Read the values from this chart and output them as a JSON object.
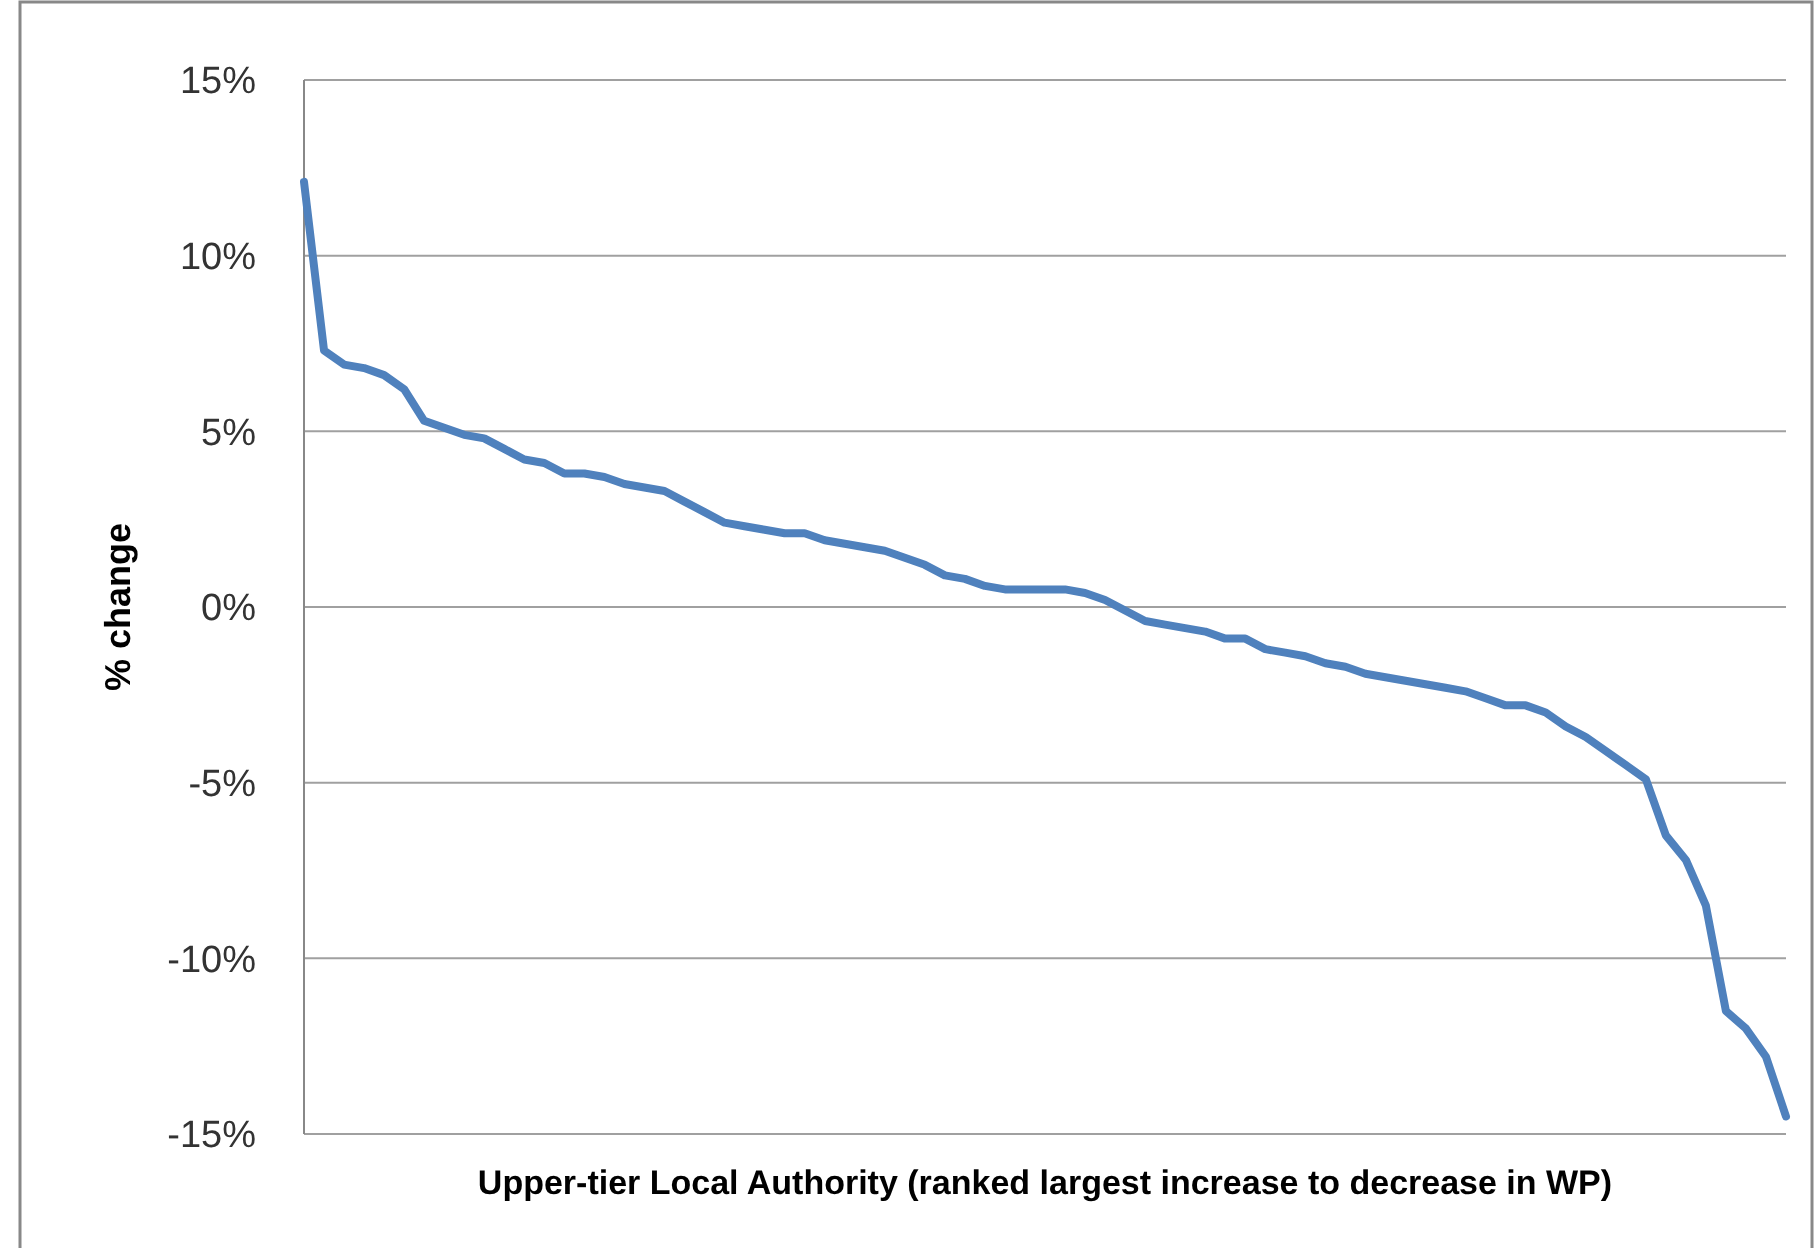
{
  "chart_data": {
    "type": "line",
    "xlabel": "Upper-tier Local Authority (ranked largest increase to decrease in WP)",
    "ylabel": "% change",
    "categories": [
      null,
      null,
      null,
      null,
      null,
      null,
      null,
      null,
      null,
      null,
      null,
      null,
      null,
      null,
      null,
      null,
      null,
      null,
      null,
      null,
      null,
      null,
      null,
      null,
      null,
      null,
      null,
      null,
      null,
      null,
      null,
      null,
      null,
      null,
      null,
      null,
      null,
      null,
      null,
      null,
      null,
      null,
      null,
      null,
      null,
      null,
      null,
      null,
      null,
      null,
      null,
      null,
      null,
      null,
      null,
      null,
      null,
      null,
      null,
      null,
      null,
      null,
      null,
      null,
      null,
      null,
      null,
      null,
      null,
      null,
      null,
      null,
      null,
      null,
      null
    ],
    "series": [
      {
        "color": "#4f81bd",
        "values": [
          12.1,
          7.3,
          6.9,
          6.8,
          6.6,
          6.2,
          5.3,
          5.1,
          4.9,
          4.8,
          4.5,
          4.2,
          4.1,
          3.8,
          3.8,
          3.7,
          3.5,
          3.4,
          3.3,
          3.0,
          2.7,
          2.4,
          2.3,
          2.2,
          2.1,
          2.1,
          1.9,
          1.8,
          1.7,
          1.6,
          1.4,
          1.2,
          0.9,
          0.8,
          0.6,
          0.5,
          0.5,
          0.5,
          0.5,
          0.4,
          0.2,
          -0.1,
          -0.4,
          -0.5,
          -0.6,
          -0.7,
          -0.9,
          -0.9,
          -1.2,
          -1.3,
          -1.4,
          -1.6,
          -1.7,
          -1.9,
          -2.0,
          -2.1,
          -2.2,
          -2.3,
          -2.4,
          -2.6,
          -2.8,
          -2.8,
          -3.0,
          -3.4,
          -3.7,
          -4.1,
          -4.5,
          -4.9,
          -6.5,
          -7.2,
          -8.5,
          -11.5,
          -12.0,
          -12.8,
          -14.5
        ]
      }
    ],
    "ylim": [
      -15,
      15
    ],
    "yticks": [
      {
        "value": -15,
        "label": "-15%"
      },
      {
        "value": -10,
        "label": "-10%"
      },
      {
        "value": -5,
        "label": "-5%"
      },
      {
        "value": 0,
        "label": "0%"
      },
      {
        "value": 5,
        "label": "5%"
      },
      {
        "value": 10,
        "label": "10%"
      },
      {
        "value": 15,
        "label": "15%"
      }
    ],
    "grid": "y",
    "marker": "none",
    "line_style": "solid",
    "tick_labels": "y"
  }
}
